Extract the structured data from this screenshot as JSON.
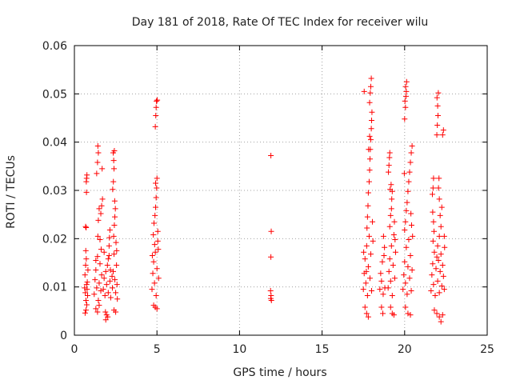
{
  "chart_data": {
    "type": "scatter",
    "title": "Day 181 of 2018, Rate Of TEC Index for receiver wilu",
    "xlabel": "GPS time / hours",
    "ylabel": "ROTI / TECUs",
    "xlim": [
      0,
      25
    ],
    "ylim": [
      0,
      0.06
    ],
    "x_ticks": [
      0,
      5,
      10,
      15,
      20,
      25
    ],
    "y_ticks": [
      0,
      0.01,
      0.02,
      0.03,
      0.04,
      0.05,
      0.06
    ],
    "x_tick_labels": [
      "0",
      "5",
      "10",
      "15",
      "20",
      "25"
    ],
    "y_tick_labels": [
      "0",
      "0.01",
      "0.02",
      "0.03",
      "0.04",
      "0.05",
      "0.06"
    ],
    "grid": true,
    "marker": "+",
    "color": "#ff0000",
    "series": [
      {
        "name": "ROTI",
        "points": [
          [
            0.62,
            0.0098
          ],
          [
            0.64,
            0.0125
          ],
          [
            0.66,
            0.0088
          ],
          [
            0.68,
            0.0145
          ],
          [
            0.7,
            0.0072
          ],
          [
            0.72,
            0.0158
          ],
          [
            0.74,
            0.0105
          ],
          [
            0.65,
            0.0046
          ],
          [
            0.7,
            0.0052
          ],
          [
            0.75,
            0.0063
          ],
          [
            0.68,
            0.0225
          ],
          [
            0.71,
            0.0223
          ],
          [
            0.73,
            0.0296
          ],
          [
            0.72,
            0.0318
          ],
          [
            0.74,
            0.0325
          ],
          [
            0.76,
            0.0332
          ],
          [
            0.78,
            0.011
          ],
          [
            0.8,
            0.0082
          ],
          [
            0.82,
            0.0135
          ],
          [
            0.69,
            0.0175
          ],
          [
            0.77,
            0.0095
          ],
          [
            1.2,
            0.0085
          ],
          [
            1.25,
            0.0115
          ],
          [
            1.3,
            0.0135
          ],
          [
            1.35,
            0.0098
          ],
          [
            1.4,
            0.0163
          ],
          [
            1.45,
            0.0072
          ],
          [
            1.5,
            0.0108
          ],
          [
            1.55,
            0.0148
          ],
          [
            1.6,
            0.0092
          ],
          [
            1.65,
            0.0125
          ],
          [
            1.3,
            0.0055
          ],
          [
            1.4,
            0.0048
          ],
          [
            1.5,
            0.0062
          ],
          [
            1.42,
            0.0205
          ],
          [
            1.45,
            0.0238
          ],
          [
            1.5,
            0.0262
          ],
          [
            1.35,
            0.0335
          ],
          [
            1.4,
            0.0358
          ],
          [
            1.45,
            0.0378
          ],
          [
            1.42,
            0.0392
          ],
          [
            1.6,
            0.0252
          ],
          [
            1.65,
            0.0268
          ],
          [
            1.7,
            0.0282
          ],
          [
            1.68,
            0.0345
          ],
          [
            1.55,
            0.0198
          ],
          [
            1.3,
            0.0155
          ],
          [
            1.62,
            0.0178
          ],
          [
            1.75,
            0.0095
          ],
          [
            1.8,
            0.0118
          ],
          [
            1.85,
            0.0082
          ],
          [
            1.9,
            0.0132
          ],
          [
            1.95,
            0.0105
          ],
          [
            2.0,
            0.0145
          ],
          [
            2.05,
            0.0088
          ],
          [
            2.1,
            0.0165
          ],
          [
            2.15,
            0.0112
          ],
          [
            2.2,
            0.0078
          ],
          [
            1.88,
            0.0048
          ],
          [
            1.95,
            0.0042
          ],
          [
            2.02,
            0.0038
          ],
          [
            1.9,
            0.0032
          ],
          [
            2.05,
            0.0158
          ],
          [
            2.1,
            0.0185
          ],
          [
            2.12,
            0.0202
          ],
          [
            2.15,
            0.0218
          ],
          [
            1.8,
            0.0172
          ],
          [
            2.18,
            0.0135
          ],
          [
            2.3,
            0.0098
          ],
          [
            2.35,
            0.0132
          ],
          [
            2.4,
            0.0168
          ],
          [
            2.45,
            0.0115
          ],
          [
            2.5,
            0.0088
          ],
          [
            2.55,
            0.0145
          ],
          [
            2.6,
            0.0075
          ],
          [
            2.4,
            0.0052
          ],
          [
            2.5,
            0.0048
          ],
          [
            2.38,
            0.0205
          ],
          [
            2.42,
            0.0228
          ],
          [
            2.45,
            0.0245
          ],
          [
            2.48,
            0.0262
          ],
          [
            2.44,
            0.0278
          ],
          [
            2.32,
            0.0302
          ],
          [
            2.36,
            0.0318
          ],
          [
            2.4,
            0.0345
          ],
          [
            2.38,
            0.0362
          ],
          [
            2.35,
            0.0378
          ],
          [
            2.42,
            0.0382
          ],
          [
            2.52,
            0.0192
          ],
          [
            2.56,
            0.0175
          ],
          [
            2.28,
            0.0122
          ],
          [
            2.58,
            0.0105
          ],
          [
            4.7,
            0.0095
          ],
          [
            4.75,
            0.0128
          ],
          [
            4.8,
            0.0152
          ],
          [
            4.85,
            0.0108
          ],
          [
            4.9,
            0.0172
          ],
          [
            4.95,
            0.0082
          ],
          [
            5.0,
            0.0138
          ],
          [
            5.05,
            0.0195
          ],
          [
            5.1,
            0.0118
          ],
          [
            4.8,
            0.0062
          ],
          [
            4.9,
            0.0058
          ],
          [
            5.0,
            0.0055
          ],
          [
            4.78,
            0.0208
          ],
          [
            4.82,
            0.0232
          ],
          [
            4.88,
            0.0248
          ],
          [
            4.92,
            0.0265
          ],
          [
            4.95,
            0.0285
          ],
          [
            4.98,
            0.0305
          ],
          [
            5.0,
            0.0325
          ],
          [
            4.92,
            0.0315
          ],
          [
            4.9,
            0.0432
          ],
          [
            4.93,
            0.0455
          ],
          [
            4.95,
            0.0472
          ],
          [
            4.97,
            0.0485
          ],
          [
            5.02,
            0.0487
          ],
          [
            5.05,
            0.0215
          ],
          [
            5.08,
            0.0178
          ],
          [
            4.72,
            0.0165
          ],
          [
            4.86,
            0.0188
          ],
          [
            11.9,
            0.0372
          ],
          [
            11.92,
            0.0215
          ],
          [
            11.9,
            0.0162
          ],
          [
            11.88,
            0.0092
          ],
          [
            11.91,
            0.0082
          ],
          [
            11.93,
            0.0072
          ],
          [
            11.89,
            0.0076
          ],
          [
            17.5,
            0.0095
          ],
          [
            17.55,
            0.0128
          ],
          [
            17.6,
            0.0158
          ],
          [
            17.65,
            0.0108
          ],
          [
            17.7,
            0.0185
          ],
          [
            17.75,
            0.0082
          ],
          [
            17.8,
            0.0142
          ],
          [
            17.85,
            0.0205
          ],
          [
            17.9,
            0.0118
          ],
          [
            17.95,
            0.0168
          ],
          [
            18.0,
            0.0092
          ],
          [
            17.6,
            0.0058
          ],
          [
            17.7,
            0.0045
          ],
          [
            17.8,
            0.0038
          ],
          [
            17.72,
            0.0222
          ],
          [
            17.75,
            0.0245
          ],
          [
            17.78,
            0.0268
          ],
          [
            17.8,
            0.0295
          ],
          [
            17.85,
            0.0318
          ],
          [
            17.88,
            0.0342
          ],
          [
            17.9,
            0.0365
          ],
          [
            17.92,
            0.0385
          ],
          [
            17.95,
            0.0405
          ],
          [
            17.98,
            0.0428
          ],
          [
            18.0,
            0.0445
          ],
          [
            18.02,
            0.0462
          ],
          [
            17.55,
            0.0505
          ],
          [
            17.88,
            0.0482
          ],
          [
            17.92,
            0.0502
          ],
          [
            17.95,
            0.0515
          ],
          [
            17.98,
            0.0532
          ],
          [
            17.82,
            0.0385
          ],
          [
            17.88,
            0.0412
          ],
          [
            18.05,
            0.0235
          ],
          [
            18.08,
            0.0195
          ],
          [
            17.52,
            0.0172
          ],
          [
            17.68,
            0.0132
          ],
          [
            18.5,
            0.0095
          ],
          [
            18.55,
            0.0128
          ],
          [
            18.6,
            0.0112
          ],
          [
            18.65,
            0.0152
          ],
          [
            18.7,
            0.0085
          ],
          [
            18.75,
            0.0165
          ],
          [
            18.8,
            0.0098
          ],
          [
            18.6,
            0.0058
          ],
          [
            18.68,
            0.0045
          ],
          [
            18.78,
            0.0182
          ],
          [
            18.72,
            0.0205
          ],
          [
            19.0,
            0.0098
          ],
          [
            19.05,
            0.0132
          ],
          [
            19.1,
            0.0158
          ],
          [
            19.15,
            0.0112
          ],
          [
            19.2,
            0.0185
          ],
          [
            19.25,
            0.0082
          ],
          [
            19.3,
            0.0145
          ],
          [
            19.35,
            0.0208
          ],
          [
            19.4,
            0.0118
          ],
          [
            19.45,
            0.0172
          ],
          [
            19.15,
            0.0058
          ],
          [
            19.25,
            0.0045
          ],
          [
            19.35,
            0.0042
          ],
          [
            19.1,
            0.0225
          ],
          [
            19.15,
            0.0248
          ],
          [
            19.2,
            0.0262
          ],
          [
            19.22,
            0.0282
          ],
          [
            19.12,
            0.0302
          ],
          [
            19.18,
            0.0312
          ],
          [
            19.25,
            0.0298
          ],
          [
            19.05,
            0.0352
          ],
          [
            19.08,
            0.0368
          ],
          [
            19.1,
            0.0378
          ],
          [
            19.02,
            0.0338
          ],
          [
            19.38,
            0.0235
          ],
          [
            19.42,
            0.0198
          ],
          [
            19.9,
            0.0095
          ],
          [
            19.95,
            0.0125
          ],
          [
            20.0,
            0.0152
          ],
          [
            20.05,
            0.0108
          ],
          [
            20.1,
            0.0182
          ],
          [
            20.15,
            0.0085
          ],
          [
            20.2,
            0.0142
          ],
          [
            20.25,
            0.0198
          ],
          [
            20.3,
            0.0118
          ],
          [
            20.35,
            0.0165
          ],
          [
            20.4,
            0.0092
          ],
          [
            20.45,
            0.0135
          ],
          [
            20.05,
            0.0058
          ],
          [
            20.2,
            0.0045
          ],
          [
            20.35,
            0.0042
          ],
          [
            20.0,
            0.0218
          ],
          [
            20.05,
            0.0235
          ],
          [
            20.1,
            0.0258
          ],
          [
            20.15,
            0.0275
          ],
          [
            20.2,
            0.0298
          ],
          [
            20.25,
            0.0318
          ],
          [
            20.3,
            0.0338
          ],
          [
            20.35,
            0.0358
          ],
          [
            20.4,
            0.0378
          ],
          [
            20.45,
            0.0392
          ],
          [
            20.38,
            0.0252
          ],
          [
            20.42,
            0.0228
          ],
          [
            20.0,
            0.0448
          ],
          [
            20.05,
            0.0472
          ],
          [
            20.02,
            0.0485
          ],
          [
            20.08,
            0.0495
          ],
          [
            20.1,
            0.0505
          ],
          [
            20.06,
            0.0515
          ],
          [
            20.12,
            0.0525
          ],
          [
            19.98,
            0.0335
          ],
          [
            20.48,
            0.0205
          ],
          [
            21.6,
            0.0092
          ],
          [
            21.65,
            0.0125
          ],
          [
            21.7,
            0.0148
          ],
          [
            21.75,
            0.0105
          ],
          [
            21.8,
            0.0172
          ],
          [
            21.85,
            0.0082
          ],
          [
            21.9,
            0.0138
          ],
          [
            21.95,
            0.0162
          ],
          [
            22.0,
            0.0112
          ],
          [
            22.05,
            0.0155
          ],
          [
            22.1,
            0.0088
          ],
          [
            22.15,
            0.0132
          ],
          [
            22.2,
            0.0168
          ],
          [
            22.25,
            0.0102
          ],
          [
            22.3,
            0.0145
          ],
          [
            22.35,
            0.0122
          ],
          [
            22.4,
            0.0095
          ],
          [
            21.8,
            0.0052
          ],
          [
            21.95,
            0.0045
          ],
          [
            22.1,
            0.0038
          ],
          [
            22.2,
            0.0028
          ],
          [
            22.3,
            0.0042
          ],
          [
            21.72,
            0.0195
          ],
          [
            21.78,
            0.0215
          ],
          [
            21.75,
            0.0235
          ],
          [
            21.7,
            0.0255
          ],
          [
            21.68,
            0.0292
          ],
          [
            21.72,
            0.0305
          ],
          [
            21.75,
            0.0325
          ],
          [
            22.0,
            0.0185
          ],
          [
            22.1,
            0.0205
          ],
          [
            22.2,
            0.0225
          ],
          [
            22.15,
            0.0248
          ],
          [
            22.25,
            0.0265
          ],
          [
            22.1,
            0.0282
          ],
          [
            22.05,
            0.0305
          ],
          [
            22.08,
            0.0325
          ],
          [
            21.95,
            0.0415
          ],
          [
            21.98,
            0.0435
          ],
          [
            22.02,
            0.0455
          ],
          [
            22.0,
            0.0475
          ],
          [
            21.96,
            0.0492
          ],
          [
            22.04,
            0.0502
          ],
          [
            22.3,
            0.0415
          ],
          [
            22.35,
            0.0425
          ],
          [
            22.4,
            0.0205
          ],
          [
            22.42,
            0.0182
          ]
        ]
      }
    ]
  }
}
